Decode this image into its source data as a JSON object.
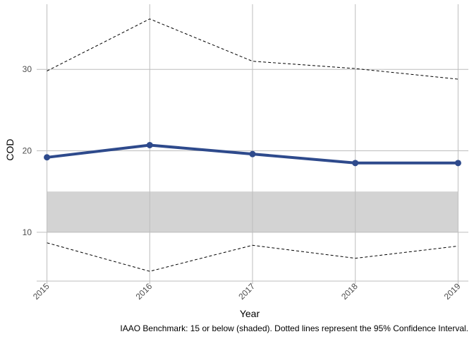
{
  "chart_data": {
    "type": "line",
    "x": [
      2015,
      2016,
      2017,
      2018,
      2019
    ],
    "series": [
      {
        "role": "estimate",
        "values": [
          19.2,
          20.7,
          19.6,
          18.5,
          18.5
        ],
        "color": "#2e4a8c"
      },
      {
        "role": "upper-ci",
        "values": [
          29.8,
          36.2,
          31.0,
          30.1,
          28.8
        ],
        "color": "#000000"
      },
      {
        "role": "lower-ci",
        "values": [
          8.7,
          5.2,
          8.4,
          6.8,
          8.3
        ],
        "color": "#000000"
      }
    ],
    "benchmark_band": {
      "ymin": 10,
      "ymax": 15,
      "color": "#d3d3d3"
    },
    "xlabel": "Year",
    "ylabel": "COD",
    "yticks": [
      10,
      20,
      30
    ],
    "ylim": [
      4,
      38
    ],
    "xlim": [
      2014.9,
      2019.1
    ],
    "grid": true,
    "caption": "IAAO Benchmark: 15 or below (shaded). Dotted lines represent the 95% Confidence Interval."
  }
}
